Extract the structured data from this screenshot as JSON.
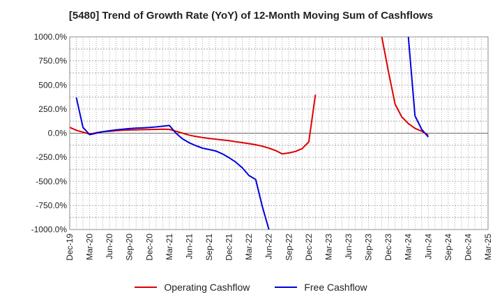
{
  "chart_data": {
    "type": "line",
    "title": "[5480]  Trend of Growth Rate (YoY) of 12-Month Moving Sum of Cashflows",
    "xlabel": "",
    "ylabel": "",
    "x_tick_labels": [
      "Dec-19",
      "Mar-20",
      "Jun-20",
      "Sep-20",
      "Dec-20",
      "Mar-21",
      "Jun-21",
      "Sep-21",
      "Dec-21",
      "Mar-22",
      "Jun-22",
      "Sep-22",
      "Dec-22",
      "Mar-23",
      "Jun-23",
      "Sep-23",
      "Dec-23",
      "Mar-24",
      "Jun-24",
      "Sep-24",
      "Dec-24",
      "Mar-25"
    ],
    "y_tick_labels": [
      "1000.0%",
      "750.0%",
      "500.0%",
      "250.0%",
      "0.0%",
      "-250.0%",
      "-500.0%",
      "-750.0%",
      "-1000.0%"
    ],
    "ylim": [
      -1000,
      1000
    ],
    "grid": true,
    "legend_position": "bottom",
    "series": [
      {
        "name": "Operating Cashflow",
        "color": "#dd0000",
        "points": [
          [
            "Dec-19",
            60
          ],
          [
            "Jan-20",
            30
          ],
          [
            "Feb-20",
            10
          ],
          [
            "Mar-20",
            -10
          ],
          [
            "Apr-20",
            5
          ],
          [
            "May-20",
            15
          ],
          [
            "Jun-20",
            20
          ],
          [
            "Jul-20",
            25
          ],
          [
            "Aug-20",
            30
          ],
          [
            "Sep-20",
            33
          ],
          [
            "Oct-20",
            35
          ],
          [
            "Nov-20",
            37
          ],
          [
            "Dec-20",
            38
          ],
          [
            "Jan-21",
            40
          ],
          [
            "Feb-21",
            42
          ],
          [
            "Mar-21",
            40
          ],
          [
            "Apr-21",
            20
          ],
          [
            "May-21",
            0
          ],
          [
            "Jun-21",
            -20
          ],
          [
            "Jul-21",
            -35
          ],
          [
            "Aug-21",
            -45
          ],
          [
            "Sep-21",
            -55
          ],
          [
            "Oct-21",
            -62
          ],
          [
            "Nov-21",
            -70
          ],
          [
            "Dec-21",
            -78
          ],
          [
            "Jan-22",
            -88
          ],
          [
            "Feb-22",
            -98
          ],
          [
            "Mar-22",
            -108
          ],
          [
            "Apr-22",
            -120
          ],
          [
            "May-22",
            -135
          ],
          [
            "Jun-22",
            -155
          ],
          [
            "Jul-22",
            -180
          ],
          [
            "Aug-22",
            -215
          ],
          [
            "Sep-22",
            -205
          ],
          [
            "Oct-22",
            -190
          ],
          [
            "Nov-22",
            -160
          ],
          [
            "Dec-22",
            -90
          ],
          [
            "Jan-23",
            400
          ]
        ]
      },
      {
        "name": "Operating Cashflow",
        "color": "#dd0000",
        "points": [
          [
            "Nov-23",
            1000
          ],
          [
            "Dec-23",
            640
          ],
          [
            "Jan-24",
            300
          ],
          [
            "Feb-24",
            170
          ],
          [
            "Mar-24",
            100
          ],
          [
            "Apr-24",
            50
          ],
          [
            "May-24",
            20
          ],
          [
            "Jun-24",
            -20
          ]
        ]
      },
      {
        "name": "Free Cashflow",
        "color": "#0000dd",
        "points": [
          [
            "Jan-20",
            370
          ],
          [
            "Feb-20",
            60
          ],
          [
            "Mar-20",
            -15
          ],
          [
            "Apr-20",
            0
          ],
          [
            "May-20",
            15
          ],
          [
            "Jun-20",
            25
          ],
          [
            "Jul-20",
            35
          ],
          [
            "Aug-20",
            42
          ],
          [
            "Sep-20",
            48
          ],
          [
            "Oct-20",
            52
          ],
          [
            "Nov-20",
            55
          ],
          [
            "Dec-20",
            60
          ],
          [
            "Jan-21",
            65
          ],
          [
            "Feb-21",
            72
          ],
          [
            "Mar-21",
            80
          ],
          [
            "Apr-21",
            0
          ],
          [
            "May-21",
            -60
          ],
          [
            "Jun-21",
            -100
          ],
          [
            "Jul-21",
            -130
          ],
          [
            "Aug-21",
            -155
          ],
          [
            "Sep-21",
            -170
          ],
          [
            "Oct-21",
            -185
          ],
          [
            "Nov-21",
            -215
          ],
          [
            "Dec-21",
            -255
          ],
          [
            "Jan-22",
            -300
          ],
          [
            "Feb-22",
            -360
          ],
          [
            "Mar-22",
            -440
          ],
          [
            "Apr-22",
            -480
          ],
          [
            "May-22",
            -760
          ],
          [
            "Jun-22",
            -1000
          ]
        ]
      },
      {
        "name": "Free Cashflow",
        "color": "#0000dd",
        "points": [
          [
            "Mar-24",
            1000
          ],
          [
            "Apr-24",
            180
          ],
          [
            "May-24",
            40
          ],
          [
            "Jun-24",
            -40
          ]
        ]
      }
    ]
  },
  "legend": [
    {
      "label": "Operating Cashflow",
      "color": "#dd0000"
    },
    {
      "label": "Free Cashflow",
      "color": "#0000dd"
    }
  ]
}
